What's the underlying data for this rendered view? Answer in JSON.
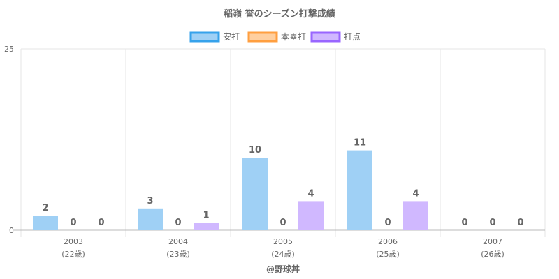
{
  "chart_data": {
    "type": "bar",
    "title": "稲嶺 誉のシーズン打撃成績",
    "categories": [
      "2003",
      "2004",
      "2005",
      "2006",
      "2007"
    ],
    "category_sublabels": [
      "(22歳)",
      "(23歳)",
      "(24歳)",
      "(25歳)",
      "(26歳)"
    ],
    "series": [
      {
        "name": "安打",
        "values": [
          2,
          3,
          10,
          11,
          0
        ],
        "fill": "#9fd0f5",
        "stroke": "#36a2eb"
      },
      {
        "name": "本塁打",
        "values": [
          0,
          0,
          0,
          0,
          0
        ],
        "fill": "#ffcf9f",
        "stroke": "#ff9f40"
      },
      {
        "name": "打点",
        "values": [
          0,
          1,
          4,
          4,
          0
        ],
        "fill": "#d0b8ff",
        "stroke": "#9966ff"
      }
    ],
    "ylim": [
      0,
      25
    ],
    "y_ticks": [
      0,
      25
    ],
    "xlabel": "",
    "ylabel": "",
    "grid": true,
    "legend_position": "top",
    "data_labels": true
  },
  "credit": "@野球丼"
}
